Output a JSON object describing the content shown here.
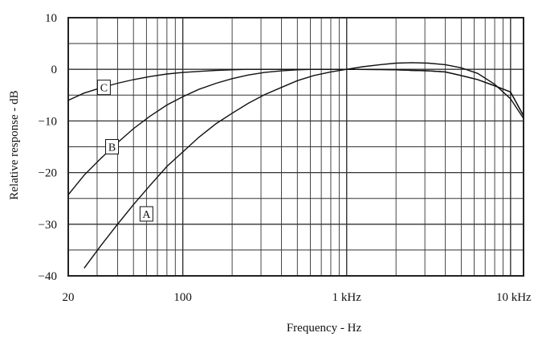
{
  "chart_data": {
    "type": "line",
    "title": "",
    "xlabel": "Frequency - Hz",
    "ylabel": "Relative response - dB",
    "x_scale": "log",
    "xlim": [
      20,
      12000
    ],
    "ylim": [
      -40,
      10
    ],
    "x_ticks": [
      {
        "value": 20,
        "label": "20"
      },
      {
        "value": 100,
        "label": "100"
      },
      {
        "value": 1000,
        "label": "1 kHz"
      },
      {
        "value": 10000,
        "label": "10 kHz"
      }
    ],
    "y_ticks": [
      {
        "value": 10,
        "label": "10"
      },
      {
        "value": 0,
        "label": "0"
      },
      {
        "value": -10,
        "label": "−10"
      },
      {
        "value": -20,
        "label": "−20"
      },
      {
        "value": -30,
        "label": "−30"
      },
      {
        "value": -40,
        "label": "−40"
      }
    ],
    "grid": true,
    "series": [
      {
        "name": "A",
        "label_at": [
          60,
          -28
        ],
        "points": [
          [
            25,
            -38.5
          ],
          [
            31.5,
            -34.2
          ],
          [
            40,
            -30.0
          ],
          [
            50,
            -26.2
          ],
          [
            63,
            -22.5
          ],
          [
            80,
            -18.8
          ],
          [
            100,
            -16.0
          ],
          [
            125,
            -13.2
          ],
          [
            160,
            -10.5
          ],
          [
            200,
            -8.5
          ],
          [
            250,
            -6.6
          ],
          [
            315,
            -4.9
          ],
          [
            400,
            -3.5
          ],
          [
            500,
            -2.2
          ],
          [
            630,
            -1.2
          ],
          [
            800,
            -0.5
          ],
          [
            1000,
            0.0
          ],
          [
            1250,
            0.5
          ],
          [
            1600,
            0.9
          ],
          [
            2000,
            1.2
          ],
          [
            2500,
            1.3
          ],
          [
            3150,
            1.2
          ],
          [
            4000,
            0.9
          ],
          [
            5000,
            0.3
          ],
          [
            6300,
            -0.8
          ],
          [
            8000,
            -2.9
          ],
          [
            10000,
            -5.7
          ],
          [
            12000,
            -9.5
          ]
        ]
      },
      {
        "name": "B",
        "label_at": [
          37,
          -15
        ],
        "points": [
          [
            20,
            -24.3
          ],
          [
            25,
            -20.5
          ],
          [
            31.5,
            -17.3
          ],
          [
            40,
            -14.2
          ],
          [
            50,
            -11.5
          ],
          [
            63,
            -9.1
          ],
          [
            80,
            -6.9
          ],
          [
            100,
            -5.3
          ],
          [
            125,
            -3.9
          ],
          [
            160,
            -2.7
          ],
          [
            200,
            -1.8
          ],
          [
            250,
            -1.1
          ],
          [
            315,
            -0.6
          ],
          [
            400,
            -0.3
          ],
          [
            500,
            -0.1
          ],
          [
            630,
            0.0
          ],
          [
            1000,
            0.0
          ],
          [
            1600,
            0.0
          ],
          [
            2000,
            -0.1
          ],
          [
            2500,
            -0.2
          ],
          [
            3150,
            -0.3
          ],
          [
            4000,
            -0.5
          ],
          [
            5000,
            -1.2
          ],
          [
            6300,
            -2.0
          ],
          [
            8000,
            -3.2
          ],
          [
            10000,
            -4.4
          ],
          [
            12000,
            -9.0
          ]
        ]
      },
      {
        "name": "C",
        "label_at": [
          33,
          -3.5
        ],
        "points": [
          [
            20,
            -6.0
          ],
          [
            25,
            -4.6
          ],
          [
            31.5,
            -3.6
          ],
          [
            40,
            -2.7
          ],
          [
            50,
            -2.0
          ],
          [
            63,
            -1.4
          ],
          [
            80,
            -0.9
          ],
          [
            100,
            -0.6
          ],
          [
            125,
            -0.4
          ],
          [
            160,
            -0.2
          ],
          [
            200,
            -0.1
          ],
          [
            250,
            0.0
          ],
          [
            1000,
            0.0
          ],
          [
            2000,
            -0.1
          ],
          [
            2500,
            -0.2
          ],
          [
            3150,
            -0.3
          ],
          [
            4000,
            -0.5
          ],
          [
            5000,
            -1.2
          ],
          [
            6300,
            -2.0
          ],
          [
            8000,
            -3.2
          ],
          [
            10000,
            -4.4
          ],
          [
            12000,
            -9.0
          ]
        ]
      }
    ]
  }
}
